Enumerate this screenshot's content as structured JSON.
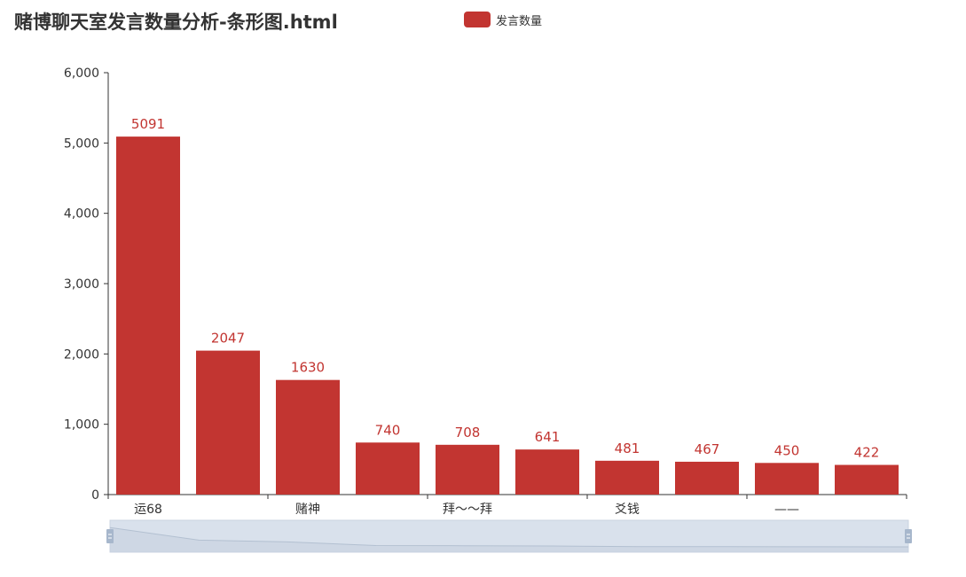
{
  "chart_data": {
    "type": "bar",
    "title": "赌博聊天室发言数量分析-条形图.html",
    "legend": [
      "发言数量"
    ],
    "legend_position": "top-center",
    "categories": [
      "运68",
      "",
      "赌神",
      "",
      "拜～～拜",
      "",
      "爻钱",
      "",
      "——",
      ""
    ],
    "series": [
      {
        "name": "发言数量",
        "values": [
          5091,
          2047,
          1630,
          740,
          708,
          641,
          481,
          467,
          450,
          422
        ]
      }
    ],
    "ylim": [
      0,
      6000
    ],
    "yticks": [
      "0",
      "1,000",
      "2,000",
      "3,000",
      "4,000",
      "5,000",
      "6,000"
    ],
    "xlabel": "",
    "ylabel": "",
    "grid": false,
    "data_labels": true,
    "datazoom_slider": true,
    "colors": {
      "bar": "#c23531",
      "axis": "#333333",
      "slider_fill": "#d9e1ec",
      "slider_border": "#c9d3e0",
      "slider_handle": "#a7b7cc"
    }
  }
}
